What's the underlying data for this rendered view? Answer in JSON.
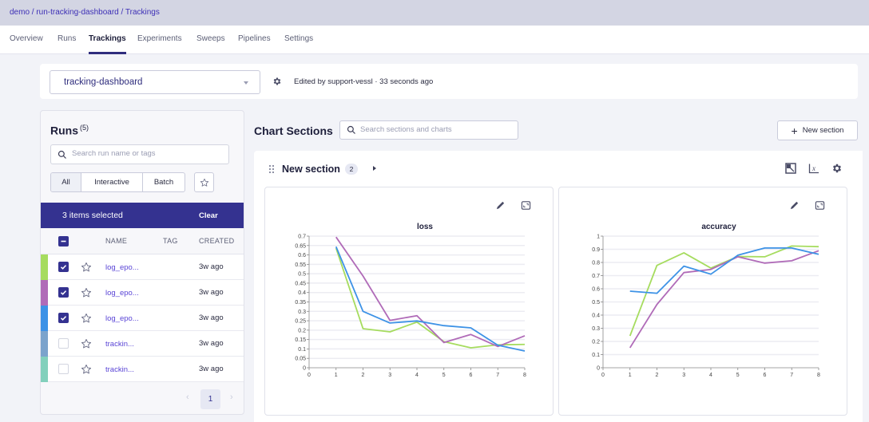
{
  "breadcrumb": "demo / run-tracking-dashboard / Trackings",
  "nav_tabs": [
    {
      "label": "Overview",
      "active": false
    },
    {
      "label": "Runs",
      "active": false
    },
    {
      "label": "Trackings",
      "active": true
    },
    {
      "label": "Experiments",
      "active": false
    },
    {
      "label": "Sweeps",
      "active": false
    },
    {
      "label": "Pipelines",
      "active": false
    },
    {
      "label": "Settings",
      "active": false
    }
  ],
  "dashboard": {
    "selected": "tracking-dashboard",
    "edited_text": "Edited by support-vessl · 33 seconds ago"
  },
  "runs_panel": {
    "title": "Runs",
    "count": "(5)",
    "search_placeholder": "Search run name or tags",
    "filters": [
      "All",
      "Interactive",
      "Batch"
    ],
    "active_filter": "All",
    "selection_text": "3 items selected",
    "clear_label": "Clear",
    "columns": {
      "name": "NAME",
      "tag": "TAG",
      "created": "CREATED"
    },
    "rows": [
      {
        "name": "log_epo...",
        "tag": "",
        "created": "3w ago",
        "checked": true,
        "color": "#a6dc5f"
      },
      {
        "name": "log_epo...",
        "tag": "",
        "created": "3w ago",
        "checked": true,
        "color": "#b06bb8"
      },
      {
        "name": "log_epo...",
        "tag": "",
        "created": "3w ago",
        "checked": true,
        "color": "#3d92e6"
      },
      {
        "name": "trackin...",
        "tag": "",
        "created": "3w ago",
        "checked": false,
        "color": "#7ba3cc"
      },
      {
        "name": "trackin...",
        "tag": "",
        "created": "3w ago",
        "checked": false,
        "color": "#82d0bc"
      }
    ],
    "page": "1",
    "prev_icon": "‹",
    "next_icon": "›"
  },
  "chart_sections": {
    "title": "Chart Sections",
    "search_placeholder": "Search sections and charts",
    "new_section_label": "New section",
    "section": {
      "title": "New section",
      "chart_count": "2"
    }
  },
  "colors": {
    "accent": "#343290",
    "link": "#5a45d6",
    "series_green": "#a6dc5f",
    "series_purple": "#b06bb8",
    "series_blue": "#3d92e6"
  },
  "chart_data": [
    {
      "type": "line",
      "title": "loss",
      "xlabel": "",
      "ylabel": "",
      "x": [
        1,
        2,
        3,
        4,
        5,
        6,
        7,
        8
      ],
      "xlim": [
        0,
        8
      ],
      "ylim": [
        0,
        0.7
      ],
      "xticks": [
        "0",
        "1",
        "2",
        "3",
        "4",
        "5",
        "6",
        "7",
        "8"
      ],
      "yticks": [
        "0",
        "0.05",
        "0.1",
        "0.15",
        "0.2",
        "0.25",
        "0.3",
        "0.35",
        "0.4",
        "0.45",
        "0.5",
        "0.55",
        "0.6",
        "0.65",
        "0.7"
      ],
      "grid": true,
      "legend": "none",
      "series": [
        {
          "name": "log_epo... (green)",
          "color": "#a6dc5f",
          "values": [
            0.636,
            0.208,
            0.191,
            0.243,
            0.139,
            0.106,
            0.122,
            0.124
          ]
        },
        {
          "name": "log_epo... (purple)",
          "color": "#b06bb8",
          "values": [
            0.695,
            0.488,
            0.252,
            0.277,
            0.134,
            0.177,
            0.113,
            0.17
          ]
        },
        {
          "name": "log_epo... (blue)",
          "color": "#3d92e6",
          "values": [
            0.644,
            0.3,
            0.238,
            0.249,
            0.224,
            0.212,
            0.12,
            0.089
          ]
        }
      ]
    },
    {
      "type": "line",
      "title": "accuracy",
      "xlabel": "",
      "ylabel": "",
      "x": [
        1,
        2,
        3,
        4,
        5,
        6,
        7,
        8
      ],
      "xlim": [
        0,
        8
      ],
      "ylim": [
        0,
        1
      ],
      "xticks": [
        "0",
        "1",
        "2",
        "3",
        "4",
        "5",
        "6",
        "7",
        "8"
      ],
      "yticks": [
        "0",
        "0.1",
        "0.2",
        "0.3",
        "0.4",
        "0.5",
        "0.6",
        "0.7",
        "0.8",
        "0.9",
        "1"
      ],
      "grid": true,
      "legend": "none",
      "series": [
        {
          "name": "log_epo... (green)",
          "color": "#a6dc5f",
          "values": [
            0.242,
            0.778,
            0.873,
            0.757,
            0.845,
            0.843,
            0.925,
            0.92
          ]
        },
        {
          "name": "log_epo... (purple)",
          "color": "#b06bb8",
          "values": [
            0.152,
            0.481,
            0.723,
            0.747,
            0.843,
            0.795,
            0.813,
            0.889
          ]
        },
        {
          "name": "log_epo... (blue)",
          "color": "#3d92e6",
          "values": [
            0.582,
            0.566,
            0.772,
            0.711,
            0.855,
            0.91,
            0.91,
            0.862
          ]
        }
      ]
    }
  ]
}
